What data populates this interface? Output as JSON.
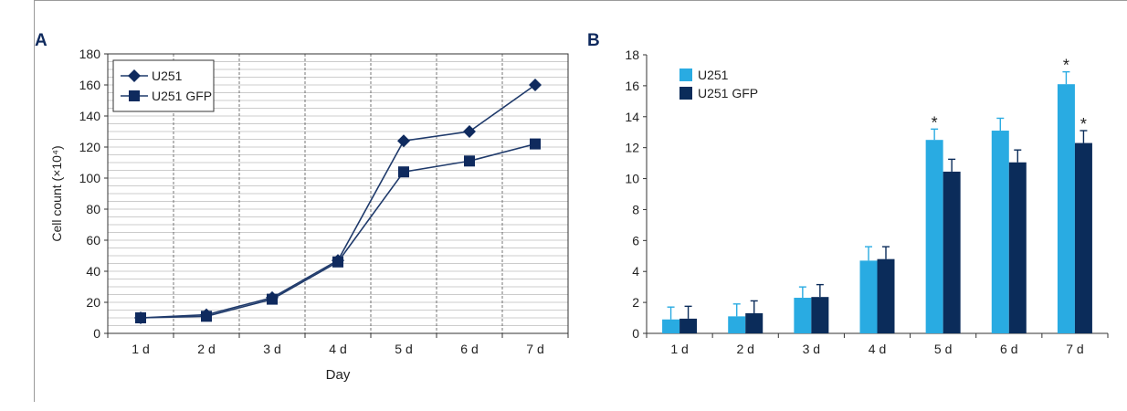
{
  "panels": {
    "a_label": "A",
    "b_label": "B"
  },
  "chart_data": [
    {
      "type": "line",
      "categories": [
        "1 d",
        "2 d",
        "3 d",
        "4 d",
        "5 d",
        "6 d",
        "7 d"
      ],
      "xlabel": "Day",
      "ylabel": "Cell count (×10⁴)",
      "ylim": [
        0,
        180
      ],
      "yticks": [
        0,
        20,
        40,
        60,
        80,
        100,
        120,
        140,
        160,
        180
      ],
      "grid": true,
      "legend_position": "top-left",
      "series": [
        {
          "name": "U251",
          "marker": "diamond",
          "values": [
            10,
            12,
            23,
            47,
            124,
            130,
            160
          ]
        },
        {
          "name": "U251 GFP",
          "marker": "square",
          "values": [
            10,
            11,
            22,
            46,
            104,
            111,
            122
          ]
        }
      ],
      "colors": {
        "line": "#1f3a6b",
        "marker": "#0f2a5e",
        "grid": "#9a9a9a"
      }
    },
    {
      "type": "bar",
      "categories": [
        "1 d",
        "2 d",
        "3 d",
        "4 d",
        "5 d",
        "6 d",
        "7 d"
      ],
      "xlabel": "",
      "ylabel": "",
      "ylim": [
        0,
        18
      ],
      "yticks": [
        0,
        2,
        4,
        6,
        8,
        10,
        12,
        14,
        16,
        18
      ],
      "grid": false,
      "legend_position": "top-left",
      "series": [
        {
          "name": "U251",
          "color": "#29abe2",
          "values": [
            0.9,
            1.1,
            2.3,
            4.7,
            12.5,
            13.1,
            16.1
          ],
          "errors": [
            0.8,
            0.8,
            0.7,
            0.9,
            0.7,
            0.8,
            0.8
          ],
          "significance": [
            "",
            "",
            "",
            "",
            "*",
            "",
            "*"
          ]
        },
        {
          "name": "U251 GFP",
          "color": "#0b2c5a",
          "values": [
            0.95,
            1.3,
            2.35,
            4.8,
            10.45,
            11.05,
            12.3
          ],
          "errors": [
            0.8,
            0.8,
            0.8,
            0.8,
            0.8,
            0.8,
            0.8
          ],
          "significance": [
            "",
            "",
            "",
            "",
            "",
            "",
            "*"
          ]
        }
      ]
    }
  ]
}
